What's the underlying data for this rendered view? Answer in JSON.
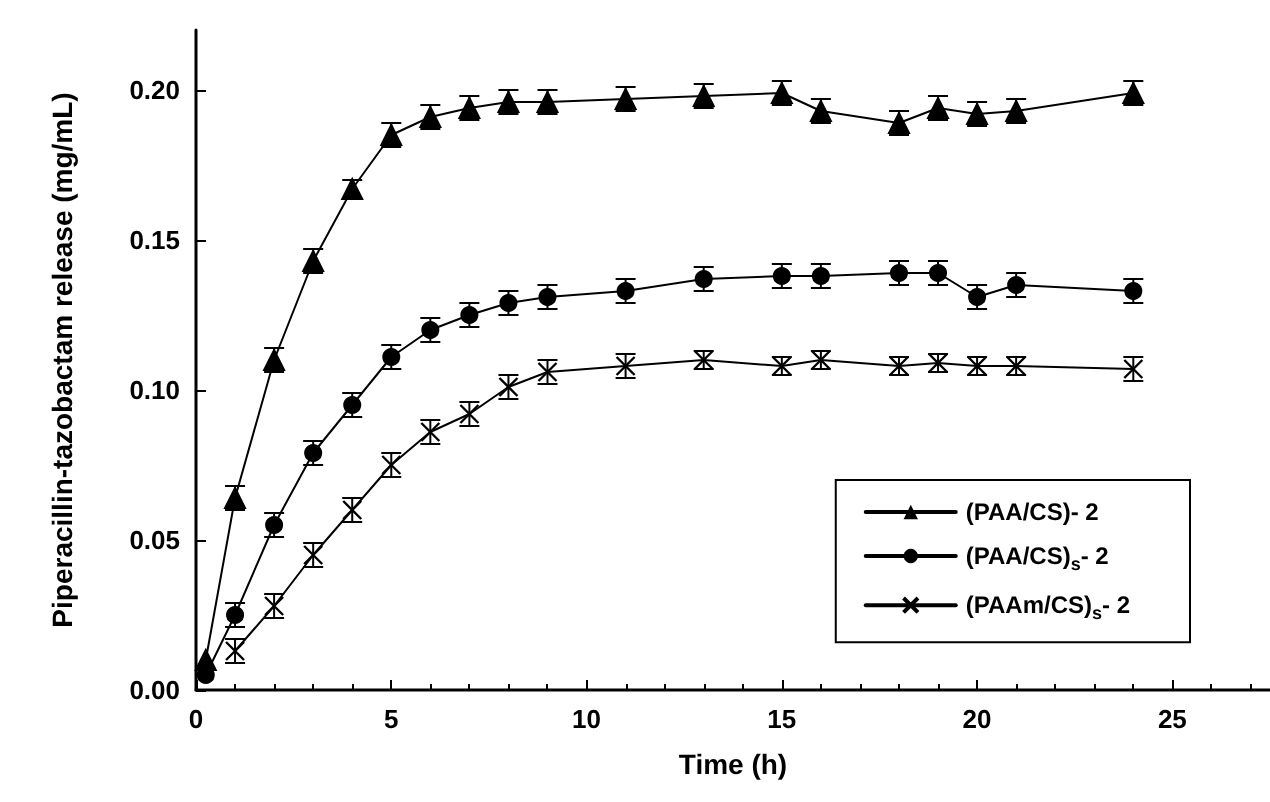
{
  "chart_data": {
    "type": "line",
    "xlabel": "Time (h)",
    "ylabel": "Piperacillin-tazobactam release (mg/mL)",
    "x": [
      0.25,
      1,
      2,
      3,
      4,
      5,
      6,
      7,
      8,
      9,
      11,
      13,
      15,
      16,
      18,
      19,
      20,
      21,
      24
    ],
    "xlim": [
      0,
      27.5
    ],
    "xticks": [
      0,
      5,
      10,
      15,
      20,
      25
    ],
    "ylim": [
      0,
      0.22
    ],
    "yticks": [
      {
        "value": 0,
        "label": "0.00"
      },
      {
        "value": 0.05,
        "label": "0.05"
      },
      {
        "value": 0.1,
        "label": "0.10"
      },
      {
        "value": 0.15,
        "label": "0.15"
      },
      {
        "value": 0.2,
        "label": "0.20"
      }
    ],
    "grid": false,
    "legend": "right",
    "line_style": "solid",
    "series": [
      {
        "name": "(PAA/CS)- 2",
        "color": "#000000",
        "marker": "triangle",
        "values": [
          0.01,
          0.064,
          0.11,
          0.143,
          0.167,
          0.185,
          0.191,
          0.194,
          0.196,
          0.196,
          0.197,
          0.198,
          0.199,
          0.193,
          0.189,
          0.194,
          0.192,
          0.193,
          0.199
        ],
        "errors": [
          null,
          0.004,
          0.004,
          0.004,
          0.003,
          0.004,
          0.004,
          0.004,
          0.004,
          0.004,
          0.004,
          0.004,
          0.004,
          0.004,
          0.004,
          0.004,
          0.004,
          0.004,
          0.004
        ]
      },
      {
        "name": "(PAA/CS)$_{s}$- 2",
        "color": "#000000",
        "marker": "circle",
        "values": [
          0.005,
          0.025,
          0.055,
          0.079,
          0.095,
          0.111,
          0.12,
          0.125,
          0.129,
          0.131,
          0.133,
          0.137,
          0.138,
          0.138,
          0.139,
          0.139,
          0.131,
          0.135,
          0.133
        ],
        "errors": [
          null,
          0.004,
          0.004,
          0.004,
          0.004,
          0.004,
          0.004,
          0.004,
          0.004,
          0.004,
          0.004,
          0.004,
          0.004,
          0.004,
          0.004,
          0.004,
          0.004,
          0.004,
          0.004
        ]
      },
      {
        "name": "(PAAm/CS)$_{s}$- 2",
        "color": "#000000",
        "marker": "cross",
        "values": [
          null,
          0.013,
          0.028,
          0.045,
          0.06,
          0.075,
          0.086,
          0.092,
          0.101,
          0.106,
          0.108,
          0.11,
          0.108,
          0.11,
          0.108,
          0.109,
          0.108,
          0.108,
          0.107
        ],
        "errors": [
          null,
          0.004,
          0.004,
          0.004,
          0.004,
          0.004,
          0.004,
          0.004,
          0.004,
          0.004,
          0.004,
          0.003,
          0.003,
          0.003,
          0.003,
          0.003,
          0.003,
          0.003,
          0.004
        ]
      }
    ]
  }
}
